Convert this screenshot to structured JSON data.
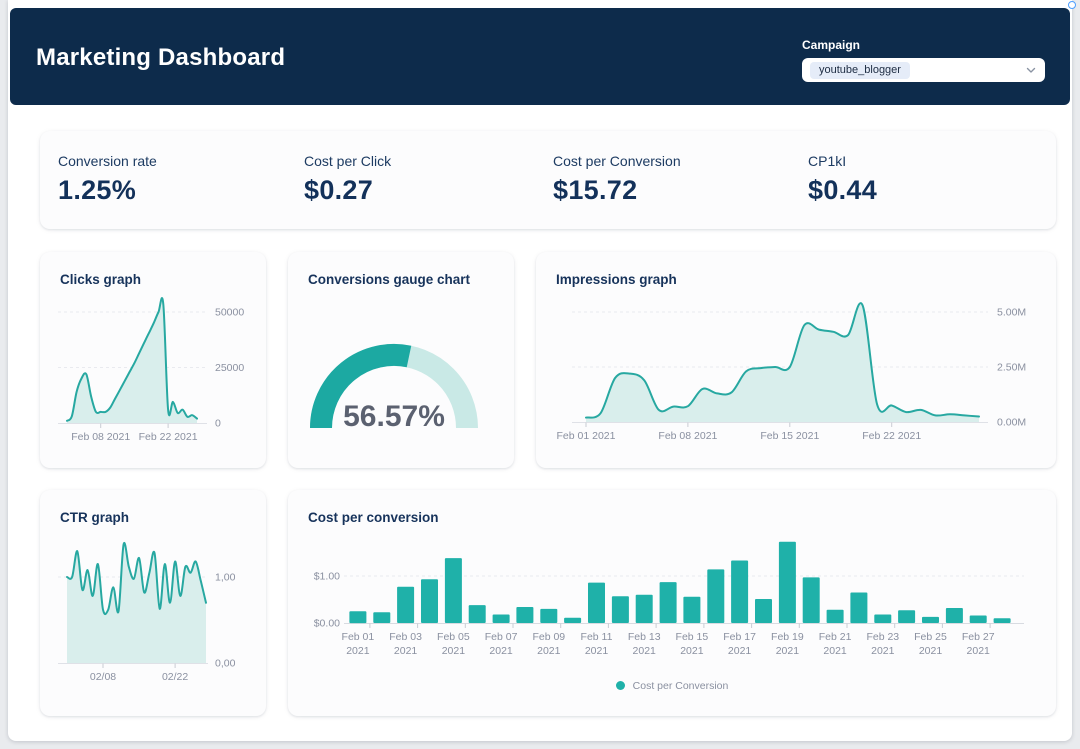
{
  "page": {
    "title": "Marketing Dashboard"
  },
  "header": {
    "campaign_label": "Campaign",
    "campaign_value": "youtube_blogger"
  },
  "kpis": [
    {
      "label": "Conversion rate",
      "value": "1.25%"
    },
    {
      "label": "Cost per Click",
      "value": "$0.27"
    },
    {
      "label": "Cost per Conversion",
      "value": "$15.72"
    },
    {
      "label": "CP1kI",
      "value": "$0.44"
    }
  ],
  "colors": {
    "navy": "#0d2b4b",
    "teal_line": "#27a8a1",
    "area_fill": "#d9eeec",
    "bar_teal": "#1fb1a9",
    "gauge_fill": "#1ca9a2",
    "gauge_rest": "#c9e9e6",
    "axis_text": "#8a90a0",
    "chip_bg": "#e5ecf8"
  },
  "chart_data": [
    {
      "type": "area",
      "title": "Clicks graph",
      "x_start": "Feb 01 2021",
      "values": [
        1000,
        3000,
        14000,
        20000,
        22000,
        12000,
        5000,
        5000,
        5000,
        7000,
        11000,
        15000,
        19000,
        23000,
        27000,
        31500,
        36000,
        40500,
        45000,
        50000,
        53500,
        6000,
        9500,
        4500,
        6000,
        2800,
        3500,
        2000
      ],
      "ylim": [
        0,
        55000
      ],
      "yticks": [
        {
          "v": 0,
          "label": "0"
        },
        {
          "v": 25000,
          "label": "25000"
        },
        {
          "v": 50000,
          "label": "50000"
        }
      ],
      "xticks": [
        {
          "i": 7,
          "label": "Feb 08 2021"
        },
        {
          "i": 21,
          "label": "Feb 22 2021"
        }
      ],
      "grid": "dashed-horizontal",
      "legend": null
    },
    {
      "type": "gauge",
      "title": "Conversions gauge chart",
      "value": 56.57,
      "label": "56.57%",
      "range": [
        0,
        100
      ]
    },
    {
      "type": "area",
      "title": "Impressions graph",
      "x_start": "Feb 01 2021",
      "values": [
        0.2,
        0.4,
        2.0,
        2.2,
        1.9,
        0.55,
        0.7,
        0.72,
        1.5,
        1.3,
        1.35,
        2.3,
        2.45,
        2.5,
        2.5,
        4.4,
        4.2,
        4.1,
        3.95,
        5.3,
        0.8,
        0.75,
        0.45,
        0.55,
        0.3,
        0.35,
        0.3,
        0.25
      ],
      "unit": "M",
      "ylim": [
        0,
        5.6
      ],
      "yticks": [
        {
          "v": 0,
          "label": "0.00M"
        },
        {
          "v": 2.5,
          "label": "2.50M"
        },
        {
          "v": 5,
          "label": "5.00M"
        }
      ],
      "xticks": [
        {
          "i": 0,
          "label": "Feb 01 2021"
        },
        {
          "i": 7,
          "label": "Feb 08 2021"
        },
        {
          "i": 14,
          "label": "Feb 15 2021"
        },
        {
          "i": 21,
          "label": "Feb 22 2021"
        }
      ],
      "grid": "dashed-horizontal",
      "legend": null
    },
    {
      "type": "area",
      "title": "CTR graph",
      "x_start": "02/01",
      "values": [
        1.0,
        1.0,
        1.3,
        0.85,
        1.08,
        0.78,
        1.15,
        0.62,
        0.62,
        0.88,
        0.6,
        1.38,
        1.12,
        0.98,
        1.22,
        0.82,
        1.05,
        1.28,
        0.63,
        1.15,
        0.7,
        1.18,
        0.78,
        1.12,
        1.05,
        1.18,
        0.95,
        0.7
      ],
      "ylim": [
        0,
        1.45
      ],
      "yticks": [
        {
          "v": 0,
          "label": "0,00"
        },
        {
          "v": 1,
          "label": "1,00"
        }
      ],
      "xticks": [
        {
          "i": 7,
          "label": "02/08"
        },
        {
          "i": 21,
          "label": "02/22"
        }
      ],
      "grid": "dashed-horizontal",
      "legend": null
    },
    {
      "type": "bar",
      "title": "Cost per conversion",
      "categories": [
        "Feb 01",
        "Feb 02",
        "Feb 03",
        "Feb 04",
        "Feb 05",
        "Feb 06",
        "Feb 07",
        "Feb 08",
        "Feb 09",
        "Feb 10",
        "Feb 11",
        "Feb 12",
        "Feb 13",
        "Feb 14",
        "Feb 15",
        "Feb 16",
        "Feb 17",
        "Feb 18",
        "Feb 19",
        "Feb 20",
        "Feb 21",
        "Feb 22",
        "Feb 23",
        "Feb 24",
        "Feb 25",
        "Feb 26",
        "Feb 27",
        "Feb 28"
      ],
      "year_label": "2021",
      "values": [
        0.25,
        0.23,
        0.77,
        0.93,
        1.38,
        0.38,
        0.18,
        0.34,
        0.3,
        0.11,
        0.86,
        0.57,
        0.6,
        0.87,
        0.56,
        1.14,
        1.33,
        0.51,
        1.73,
        0.97,
        0.28,
        0.65,
        0.18,
        0.27,
        0.13,
        0.32,
        0.16,
        0.1
      ],
      "ylim": [
        0,
        1.9
      ],
      "yticks": [
        {
          "v": 0,
          "label": "$0.00"
        },
        {
          "v": 1,
          "label": "$1.00"
        }
      ],
      "label_interval": 2,
      "grid": "dashed-horizontal",
      "legend_label": "Cost per Conversion",
      "legend_position": "bottom-center"
    }
  ]
}
